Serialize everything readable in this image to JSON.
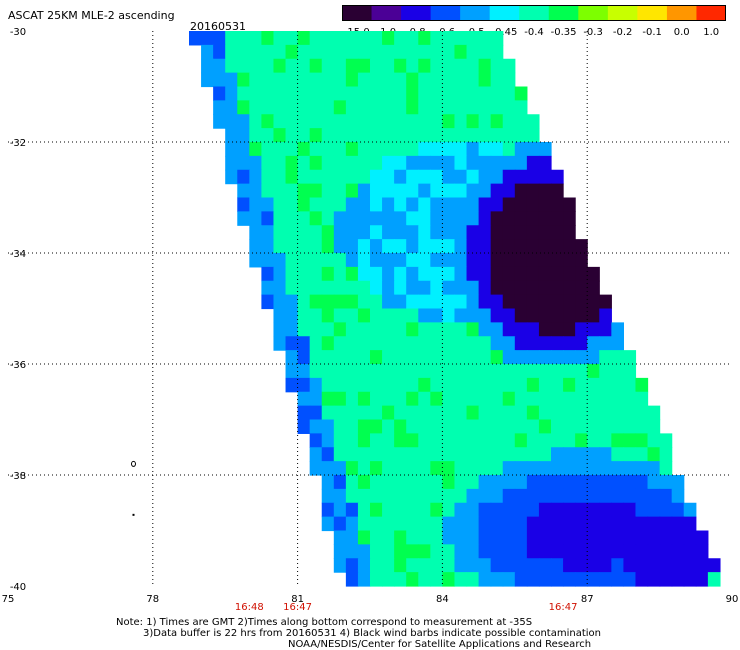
{
  "header": {
    "title": "ASCAT 25KM MLE-2 ascending",
    "date": "20160531"
  },
  "colorbar": {
    "labels": [
      "-15.0",
      "-1.0",
      "-0.8",
      "-0.6",
      "-0.5",
      "-0.45",
      "-0.4",
      "-0.35",
      "-0.3",
      "-0.2",
      "-0.1",
      "0.0",
      "1.0"
    ],
    "colors": [
      "#2a0033",
      "#4b0096",
      "#1a00e6",
      "#0050ff",
      "#00a0ff",
      "#00f0ff",
      "#00ffb0",
      "#00ff50",
      "#7dff00",
      "#c8ff00",
      "#ffe600",
      "#ff9600",
      "#ff2800"
    ]
  },
  "chart_data": {
    "type": "heatmap",
    "title": "ASCAT 25KM MLE-2 ascending",
    "subtitle": "20160531",
    "xlabel": "",
    "ylabel": "",
    "xlim": [
      75,
      90
    ],
    "ylim": [
      -40,
      -30
    ],
    "xticks": [
      "75",
      "78",
      "81",
      "84",
      "87",
      "90"
    ],
    "yticks": [
      "-30",
      "-32",
      "-34",
      "-36",
      "-38",
      "-40"
    ],
    "grid": true,
    "time_labels": [
      {
        "text": "16:48",
        "lon": 80.0
      },
      {
        "text": "16:47",
        "lon": 81.0
      },
      {
        "text": "16:47",
        "lon": 86.5
      }
    ],
    "swath_lon_range": [
      78.8,
      89.8
    ],
    "regions": [
      {
        "description": "dominant value",
        "value": -0.35,
        "color": "#40ff00"
      },
      {
        "description": "low region near 32-35S, 85-87E",
        "value": -1.0,
        "color": "#4b0096"
      },
      {
        "description": "low region near 38-40S, 85-88E",
        "value": -0.6,
        "color": "#1a00e6"
      }
    ]
  },
  "footer": {
    "line1": "Note: 1) Times are GMT 2)Times along bottom correspond to measurement at -35S",
    "line2": "3)Data buffer is 22 hrs from 20160531 4) Black wind barbs indicate possible contamination",
    "line3": "NOAA/NESDIS/Center for Satellite Applications and Research"
  }
}
